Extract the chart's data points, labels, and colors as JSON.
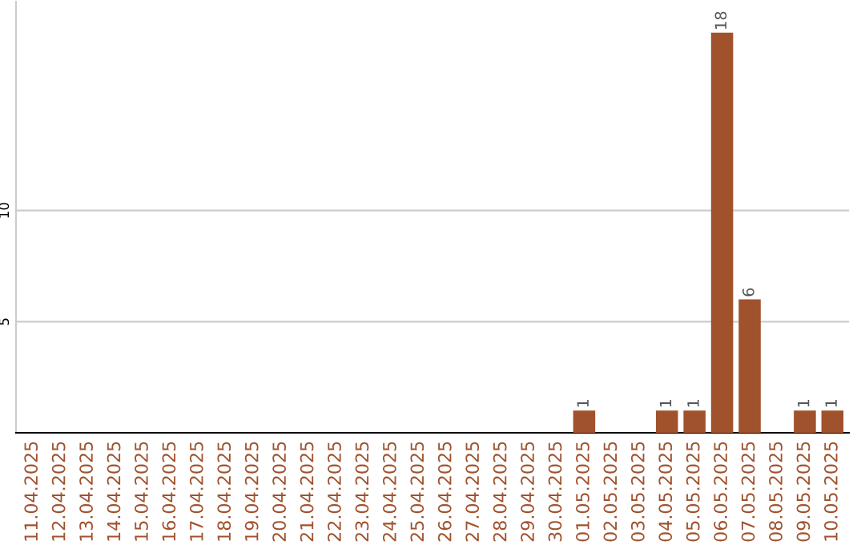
{
  "chart_data": {
    "type": "bar",
    "categories": [
      "11.04.2025",
      "12.04.2025",
      "13.04.2025",
      "14.04.2025",
      "15.04.2025",
      "16.04.2025",
      "17.04.2025",
      "18.04.2025",
      "19.04.2025",
      "20.04.2025",
      "21.04.2025",
      "22.04.2025",
      "23.04.2025",
      "24.04.2025",
      "25.04.2025",
      "26.04.2025",
      "27.04.2025",
      "28.04.2025",
      "29.04.2025",
      "30.04.2025",
      "01.05.2025",
      "02.05.2025",
      "03.05.2025",
      "04.05.2025",
      "05.05.2025",
      "06.05.2025",
      "07.05.2025",
      "08.05.2025",
      "09.05.2025",
      "10.05.2025"
    ],
    "values": [
      0,
      0,
      0,
      0,
      0,
      0,
      0,
      0,
      0,
      0,
      0,
      0,
      0,
      0,
      0,
      0,
      0,
      0,
      0,
      0,
      1,
      0,
      0,
      1,
      1,
      18,
      6,
      0,
      1,
      1
    ],
    "value_labels": [
      null,
      null,
      null,
      null,
      null,
      null,
      null,
      null,
      null,
      null,
      null,
      null,
      null,
      null,
      null,
      null,
      null,
      null,
      null,
      null,
      "1",
      null,
      null,
      "1",
      "1",
      "18",
      "6",
      null,
      "1",
      "1"
    ],
    "color": "#a0522d",
    "ylim": [
      0,
      19.4
    ],
    "yticks": [
      5,
      10
    ],
    "grid": "y"
  }
}
